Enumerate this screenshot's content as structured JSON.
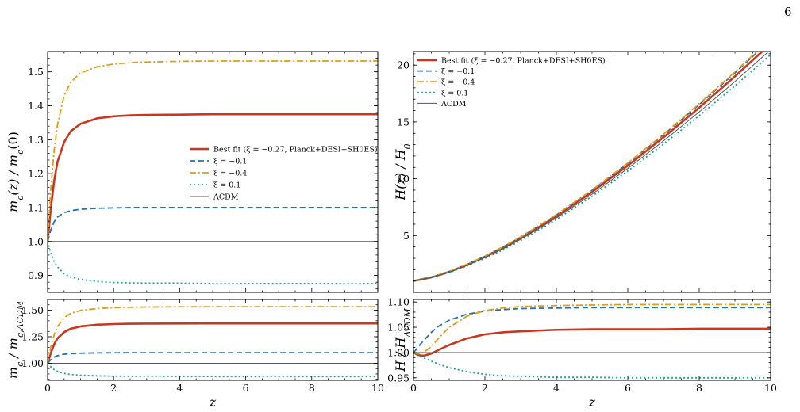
{
  "page_number": "6",
  "chart_data": [
    {
      "type": "line",
      "ylabel": "m_c(z) / m_c(0)",
      "xlim": [
        0,
        10
      ],
      "ylim": [
        0.85,
        1.56
      ],
      "xticks": [
        0,
        2,
        4,
        6,
        8,
        10
      ],
      "yticks": [
        0.9,
        1.0,
        1.1,
        1.2,
        1.3,
        1.4,
        1.5
      ],
      "ytick_labels": [
        "0.9",
        "1.0",
        "1.1",
        "1.2",
        "1.3",
        "1.4",
        "1.5"
      ],
      "legend_position": "center-right",
      "x": [
        0,
        0.1,
        0.2,
        0.3,
        0.5,
        0.7,
        1,
        1.5,
        2,
        2.5,
        3,
        4,
        5,
        6,
        7,
        8,
        9,
        10
      ],
      "series": [
        {
          "name": "Best fit (ξ = −0.27, Planck+DESI+SH0ES)",
          "color": "#c8371e",
          "width": 2.6,
          "dash": "",
          "values": [
            1.0,
            1.1,
            1.18,
            1.235,
            1.293,
            1.325,
            1.347,
            1.363,
            1.369,
            1.372,
            1.373,
            1.374,
            1.375,
            1.375,
            1.375,
            1.375,
            1.375,
            1.375
          ]
        },
        {
          "name": "ξ = −0.1",
          "color": "#1f72b4",
          "width": 1.8,
          "dash": "7,4",
          "values": [
            1.0,
            1.035,
            1.058,
            1.072,
            1.085,
            1.091,
            1.095,
            1.098,
            1.099,
            1.1,
            1.1,
            1.1,
            1.1,
            1.1,
            1.1,
            1.1,
            1.1,
            1.1
          ]
        },
        {
          "name": "ξ = −0.4",
          "color": "#e39c12",
          "width": 1.8,
          "dash": "8,3,2,3",
          "values": [
            1.0,
            1.16,
            1.27,
            1.345,
            1.43,
            1.47,
            1.497,
            1.515,
            1.523,
            1.527,
            1.529,
            1.531,
            1.532,
            1.532,
            1.532,
            1.532,
            1.532,
            1.532
          ]
        },
        {
          "name": "ξ = 0.1",
          "color": "#1aa58b",
          "width": 1.8,
          "dash": "2,3",
          "values": [
            1.0,
            0.965,
            0.94,
            0.925,
            0.905,
            0.895,
            0.888,
            0.882,
            0.879,
            0.878,
            0.877,
            0.877,
            0.876,
            0.876,
            0.876,
            0.876,
            0.876,
            0.876
          ]
        },
        {
          "name": "ΛCDM",
          "color": "#555555",
          "width": 1.0,
          "dash": "",
          "values": [
            1.0,
            1.0,
            1.0,
            1.0,
            1.0,
            1.0,
            1.0,
            1.0,
            1.0,
            1.0,
            1.0,
            1.0,
            1.0,
            1.0,
            1.0,
            1.0,
            1.0,
            1.0
          ]
        }
      ]
    },
    {
      "type": "line",
      "xlabel": "z",
      "ylabel": "m_c / m_c,ΛCDM",
      "xlim": [
        0,
        10
      ],
      "ylim": [
        0.84,
        1.6
      ],
      "xticks": [
        0,
        2,
        4,
        6,
        8,
        10
      ],
      "yticks": [
        1.0,
        1.25,
        1.5
      ],
      "ytick_labels": [
        "1.00",
        "1.25",
        "1.50"
      ],
      "x": [
        0,
        0.1,
        0.2,
        0.3,
        0.5,
        0.7,
        1,
        1.5,
        2,
        2.5,
        3,
        4,
        5,
        6,
        7,
        8,
        9,
        10
      ],
      "series": [
        {
          "name": "Best fit (ξ = −0.27, Planck+DESI+SH0ES)",
          "color": "#c8371e",
          "width": 2.6,
          "dash": "",
          "values": [
            1.0,
            1.1,
            1.18,
            1.235,
            1.293,
            1.325,
            1.347,
            1.363,
            1.369,
            1.372,
            1.373,
            1.374,
            1.375,
            1.375,
            1.375,
            1.375,
            1.375,
            1.375
          ]
        },
        {
          "name": "ξ = −0.1",
          "color": "#1f72b4",
          "width": 1.8,
          "dash": "7,4",
          "values": [
            1.0,
            1.035,
            1.058,
            1.072,
            1.085,
            1.091,
            1.095,
            1.098,
            1.099,
            1.1,
            1.1,
            1.1,
            1.1,
            1.1,
            1.1,
            1.1,
            1.1,
            1.1
          ]
        },
        {
          "name": "ξ = −0.4",
          "color": "#e39c12",
          "width": 1.8,
          "dash": "8,3,2,3",
          "values": [
            1.0,
            1.16,
            1.27,
            1.345,
            1.43,
            1.47,
            1.497,
            1.515,
            1.523,
            1.527,
            1.529,
            1.531,
            1.532,
            1.532,
            1.532,
            1.532,
            1.532,
            1.532
          ]
        },
        {
          "name": "ξ = 0.1",
          "color": "#1aa58b",
          "width": 1.8,
          "dash": "2,3",
          "values": [
            1.0,
            0.965,
            0.94,
            0.925,
            0.905,
            0.895,
            0.888,
            0.882,
            0.879,
            0.878,
            0.877,
            0.877,
            0.876,
            0.876,
            0.876,
            0.876,
            0.876,
            0.876
          ]
        },
        {
          "name": "ΛCDM",
          "color": "#555555",
          "width": 1.0,
          "dash": "",
          "values": [
            1.0,
            1.0,
            1.0,
            1.0,
            1.0,
            1.0,
            1.0,
            1.0,
            1.0,
            1.0,
            1.0,
            1.0,
            1.0,
            1.0,
            1.0,
            1.0,
            1.0,
            1.0
          ]
        }
      ]
    },
    {
      "type": "line",
      "ylabel": "H(z) / H_0",
      "xlim": [
        0,
        10
      ],
      "ylim": [
        0,
        21.2
      ],
      "xticks": [
        0,
        2,
        4,
        6,
        8,
        10
      ],
      "yticks": [
        5,
        10,
        15,
        20
      ],
      "ytick_labels": [
        "5",
        "10",
        "15",
        "20"
      ],
      "legend_position": "top-left",
      "x": [
        0,
        0.5,
        1,
        1.5,
        2,
        2.5,
        3,
        4,
        5,
        6,
        7,
        8,
        9,
        10
      ],
      "series": [
        {
          "name": "Best fit (ξ = −0.27, Planck+DESI+SH0ES)",
          "color": "#c8371e",
          "width": 2.6,
          "dash": "",
          "values": [
            1.0,
            1.32,
            1.81,
            2.42,
            3.13,
            3.91,
            4.77,
            6.7,
            8.84,
            11.16,
            13.64,
            16.26,
            19.01,
            21.88
          ]
        },
        {
          "name": "ξ = −0.1",
          "color": "#1f72b4",
          "width": 1.8,
          "dash": "7,4",
          "values": [
            1.0,
            1.33,
            1.83,
            2.45,
            3.17,
            3.97,
            4.86,
            6.8,
            8.98,
            11.34,
            13.86,
            16.52,
            19.32,
            22.23
          ]
        },
        {
          "name": "ξ = −0.4",
          "color": "#e39c12",
          "width": 1.8,
          "dash": "8,3,2,3",
          "values": [
            1.0,
            1.33,
            1.84,
            2.47,
            3.2,
            4.0,
            4.88,
            6.84,
            9.02,
            11.39,
            13.92,
            16.6,
            19.41,
            22.33
          ]
        },
        {
          "name": "ξ = 0.1",
          "color": "#1aa58b",
          "width": 1.8,
          "dash": "2,3",
          "values": [
            1.0,
            1.29,
            1.75,
            2.32,
            2.99,
            3.74,
            4.56,
            6.41,
            8.46,
            10.68,
            13.05,
            15.55,
            18.18,
            20.92
          ]
        },
        {
          "name": "ΛCDM",
          "color": "#555555",
          "width": 1.0,
          "dash": "",
          "values": [
            1.0,
            1.31,
            1.78,
            2.37,
            3.06,
            3.83,
            4.67,
            6.55,
            8.64,
            10.91,
            13.33,
            15.88,
            18.56,
            21.36
          ]
        }
      ]
    },
    {
      "type": "line",
      "xlabel": "z",
      "ylabel": "H / H_ΛCDM",
      "xlim": [
        0,
        10
      ],
      "ylim": [
        0.945,
        1.105
      ],
      "xticks": [
        0,
        2,
        4,
        6,
        8,
        10
      ],
      "yticks": [
        0.95,
        1.0,
        1.05,
        1.1
      ],
      "ytick_labels": [
        "0.95",
        "1.00",
        "1.05",
        "1.10"
      ],
      "x": [
        0,
        0.1,
        0.2,
        0.3,
        0.5,
        0.7,
        1,
        1.5,
        2,
        2.5,
        3,
        4,
        5,
        6,
        7,
        8,
        9,
        10
      ],
      "series": [
        {
          "name": "Best fit (ξ = −0.27, Planck+DESI+SH0ES)",
          "color": "#c8371e",
          "width": 2.6,
          "dash": "",
          "values": [
            1.0,
            0.996,
            0.994,
            0.994,
            0.998,
            1.005,
            1.015,
            1.028,
            1.036,
            1.04,
            1.042,
            1.045,
            1.046,
            1.046,
            1.046,
            1.047,
            1.047,
            1.047
          ]
        },
        {
          "name": "ξ = −0.1",
          "color": "#1f72b4",
          "width": 1.8,
          "dash": "7,4",
          "values": [
            1.0,
            1.008,
            1.017,
            1.025,
            1.04,
            1.052,
            1.064,
            1.076,
            1.082,
            1.085,
            1.087,
            1.088,
            1.089,
            1.089,
            1.089,
            1.089,
            1.089,
            1.089
          ]
        },
        {
          "name": "ξ = −0.4",
          "color": "#e39c12",
          "width": 1.8,
          "dash": "8,3,2,3",
          "values": [
            1.0,
            0.998,
            0.998,
            1.001,
            1.012,
            1.028,
            1.05,
            1.072,
            1.083,
            1.088,
            1.091,
            1.093,
            1.094,
            1.095,
            1.095,
            1.095,
            1.095,
            1.095
          ]
        },
        {
          "name": "ξ = 0.1",
          "color": "#1aa58b",
          "width": 1.8,
          "dash": "2,3",
          "values": [
            1.0,
            0.997,
            0.993,
            0.989,
            0.983,
            0.977,
            0.97,
            0.962,
            0.957,
            0.954,
            0.953,
            0.951,
            0.951,
            0.95,
            0.95,
            0.95,
            0.95,
            0.95
          ]
        },
        {
          "name": "ΛCDM",
          "color": "#555555",
          "width": 1.0,
          "dash": "",
          "values": [
            1.0,
            1.0,
            1.0,
            1.0,
            1.0,
            1.0,
            1.0,
            1.0,
            1.0,
            1.0,
            1.0,
            1.0,
            1.0,
            1.0,
            1.0,
            1.0,
            1.0,
            1.0
          ]
        }
      ]
    }
  ]
}
